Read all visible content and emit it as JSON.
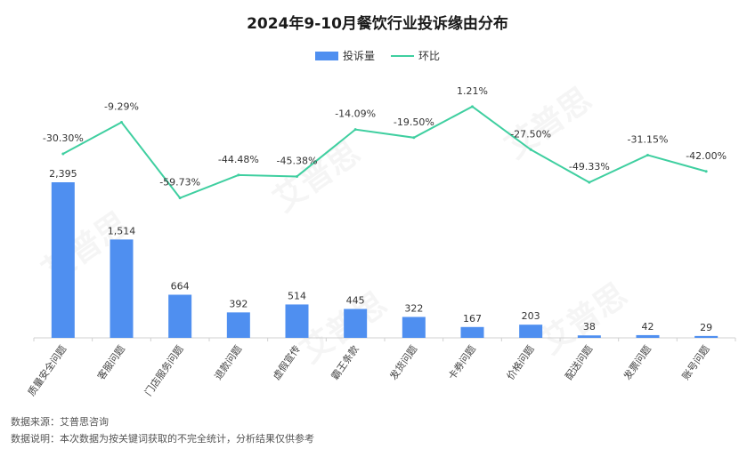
{
  "title": "2024年9-10月餐饮行业投诉缘由分布",
  "legend": {
    "bar_label": "投诉量",
    "line_label": "环比"
  },
  "colors": {
    "bar": "#4f8ff0",
    "line": "#3fcfa0",
    "axis": "#d0d0d0"
  },
  "watermark": "艾普思",
  "footer": {
    "source": "数据来源：艾普思咨询",
    "note": "数据说明：本次数据为按关键词获取的不完全统计，分析结果仅供参考"
  },
  "chart_data": {
    "type": "bar",
    "title": "2024年9-10月餐饮行业投诉缘由分布",
    "categories": [
      "质量安全问题",
      "客服问题",
      "门店服务问题",
      "退款问题",
      "虚假宣传",
      "霸王条款",
      "发货问题",
      "卡券问题",
      "价格问题",
      "配送问题",
      "发票问题",
      "账号问题"
    ],
    "series": [
      {
        "name": "投诉量",
        "type": "bar",
        "values": [
          2395,
          1514,
          664,
          392,
          514,
          445,
          322,
          167,
          203,
          38,
          42,
          29
        ],
        "labels": [
          "2,395",
          "1,514",
          "664",
          "392",
          "514",
          "445",
          "322",
          "167",
          "203",
          "38",
          "42",
          "29"
        ]
      },
      {
        "name": "环比",
        "type": "line",
        "values": [
          -30.3,
          -9.29,
          -59.73,
          -44.48,
          -45.38,
          -14.09,
          -19.5,
          1.21,
          -27.5,
          -49.33,
          -31.15,
          -42.0
        ],
        "labels": [
          "-30.30%",
          "-9.29%",
          "-59.73%",
          "-44.48%",
          "-45.38%",
          "-14.09%",
          "-19.50%",
          "1.21%",
          "-27.50%",
          "-49.33%",
          "-31.15%",
          "-42.00%"
        ]
      }
    ],
    "ylim_bar": [
      0,
      2395
    ],
    "ylim_line": [
      -70,
      10
    ],
    "legend_position": "top-center",
    "grid": false
  }
}
